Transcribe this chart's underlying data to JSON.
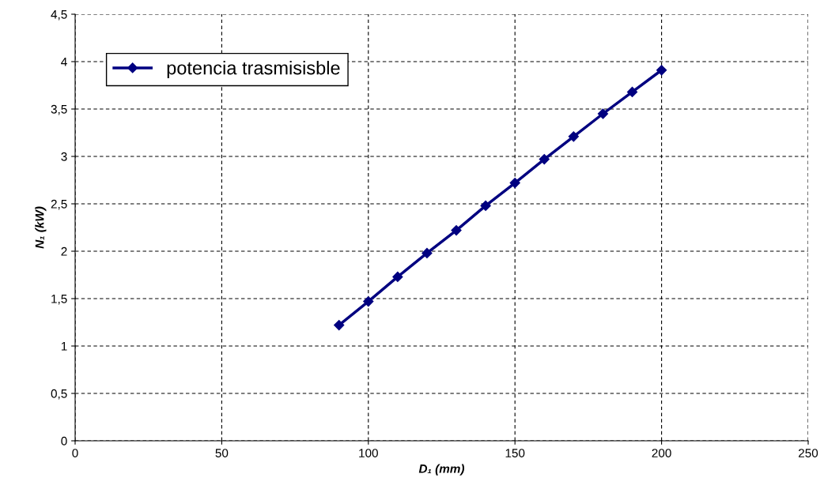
{
  "chart_data": {
    "type": "line",
    "xlabel": "D₁ (mm)",
    "ylabel": "N₁ (kW)",
    "x": [
      90,
      100,
      110,
      120,
      130,
      140,
      150,
      160,
      170,
      180,
      190,
      200
    ],
    "series": [
      {
        "name": "potencia trasmisisble",
        "color": "#000080",
        "values": [
          1.22,
          1.47,
          1.73,
          1.98,
          2.22,
          2.48,
          2.72,
          2.97,
          3.21,
          3.45,
          3.68,
          3.91
        ]
      }
    ],
    "xlim": [
      0,
      250
    ],
    "xticks": [
      0,
      50,
      100,
      150,
      200,
      250
    ],
    "ylim": [
      0,
      4.5
    ],
    "yticks": [
      0,
      {
        "value": 0.5,
        "label": "0,5"
      },
      1,
      {
        "value": 1.5,
        "label": "1,5"
      },
      2,
      {
        "value": 2.5,
        "label": "2,5"
      },
      3,
      {
        "value": 3.5,
        "label": "3,5"
      },
      4,
      {
        "value": 4.5,
        "label": "4,5"
      }
    ],
    "grid": true,
    "legend": "top left",
    "marker": "diamond",
    "line_style": "solid"
  }
}
